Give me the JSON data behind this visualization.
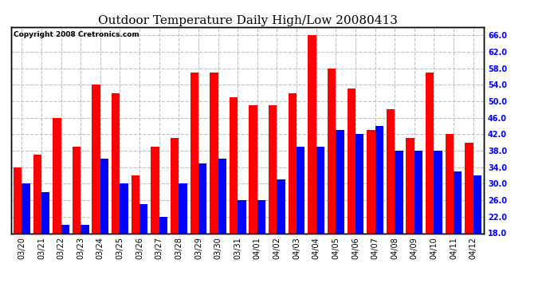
{
  "title": "Outdoor Temperature Daily High/Low 20080413",
  "copyright": "Copyright 2008 Cretronics.com",
  "dates": [
    "03/20",
    "03/21",
    "03/22",
    "03/23",
    "03/24",
    "03/25",
    "03/26",
    "03/27",
    "03/28",
    "03/29",
    "03/30",
    "03/31",
    "04/01",
    "04/02",
    "04/03",
    "04/04",
    "04/05",
    "04/06",
    "04/07",
    "04/08",
    "04/09",
    "04/10",
    "04/11",
    "04/12"
  ],
  "highs": [
    34,
    37,
    46,
    39,
    54,
    52,
    32,
    39,
    41,
    57,
    57,
    51,
    49,
    49,
    52,
    66,
    58,
    53,
    43,
    48,
    41,
    57,
    42,
    40
  ],
  "lows": [
    30,
    28,
    20,
    20,
    36,
    30,
    25,
    22,
    30,
    35,
    36,
    26,
    26,
    31,
    39,
    39,
    43,
    42,
    44,
    38,
    38,
    38,
    33,
    32
  ],
  "high_color": "#ff0000",
  "low_color": "#0000ff",
  "bg_color": "#ffffff",
  "grid_color": "#c0c0c0",
  "ymin": 18,
  "ymax": 68,
  "yticks": [
    18,
    22,
    26,
    30,
    34,
    38,
    42,
    46,
    50,
    54,
    58,
    62,
    66
  ],
  "bar_width": 0.42,
  "title_fontsize": 11,
  "tick_fontsize": 7,
  "copyright_fontsize": 6.5
}
